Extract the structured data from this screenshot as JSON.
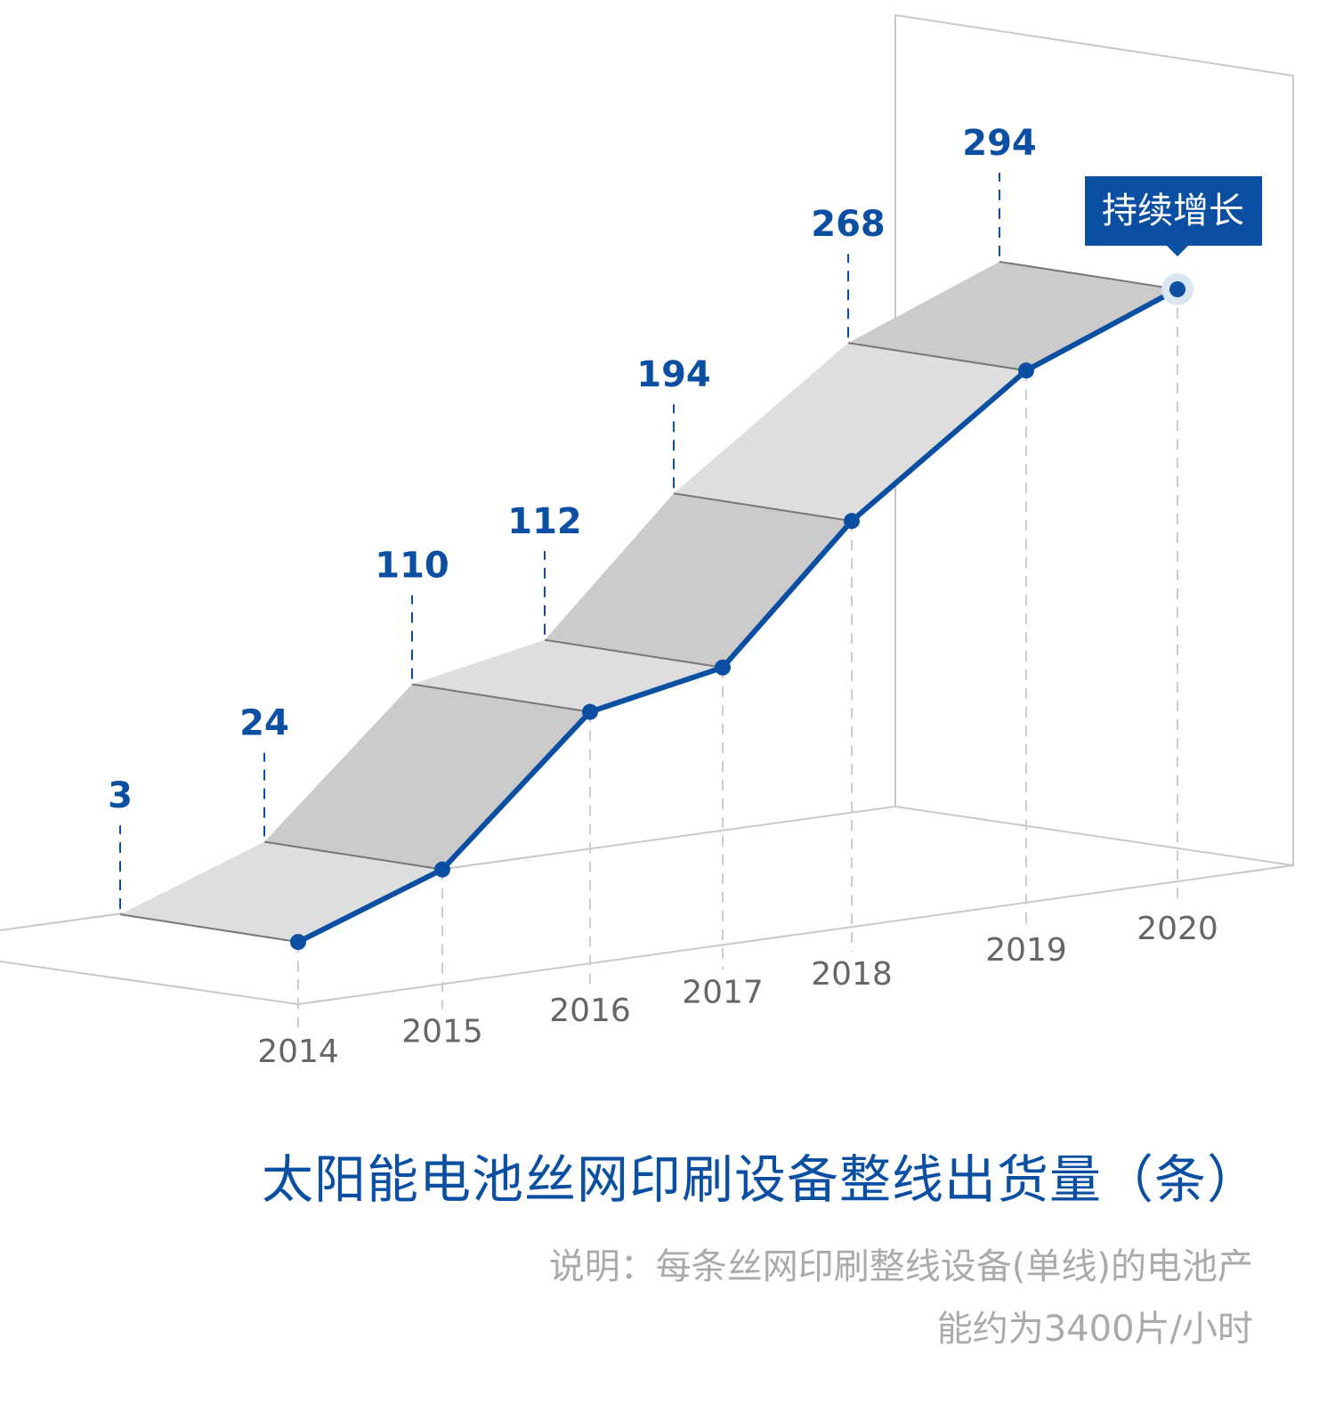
{
  "chart_data": {
    "type": "line",
    "style": "3d-ribbon",
    "categories": [
      "2014",
      "2015",
      "2016",
      "2017",
      "2018",
      "2019",
      "2020"
    ],
    "values": [
      3,
      24,
      110,
      112,
      194,
      268,
      294
    ],
    "data_labels": [
      "3",
      "24",
      "110",
      "112",
      "194",
      "268",
      "294"
    ],
    "annotation": "持续增长",
    "title": "太阳能电池丝网印刷设备整线出货量（条）",
    "note_lines": [
      "说明：每条丝网印刷整线设备(单线)的电池产",
      "能约为3400片/小时"
    ],
    "grid": false,
    "colors": {
      "line": "#0b4fa3",
      "ribbon_light": "#dedede",
      "ribbon_dark": "#cbcbcb",
      "floor": "#c8c8c8",
      "year_label": "#666666",
      "note": "#aaaaaa"
    }
  }
}
